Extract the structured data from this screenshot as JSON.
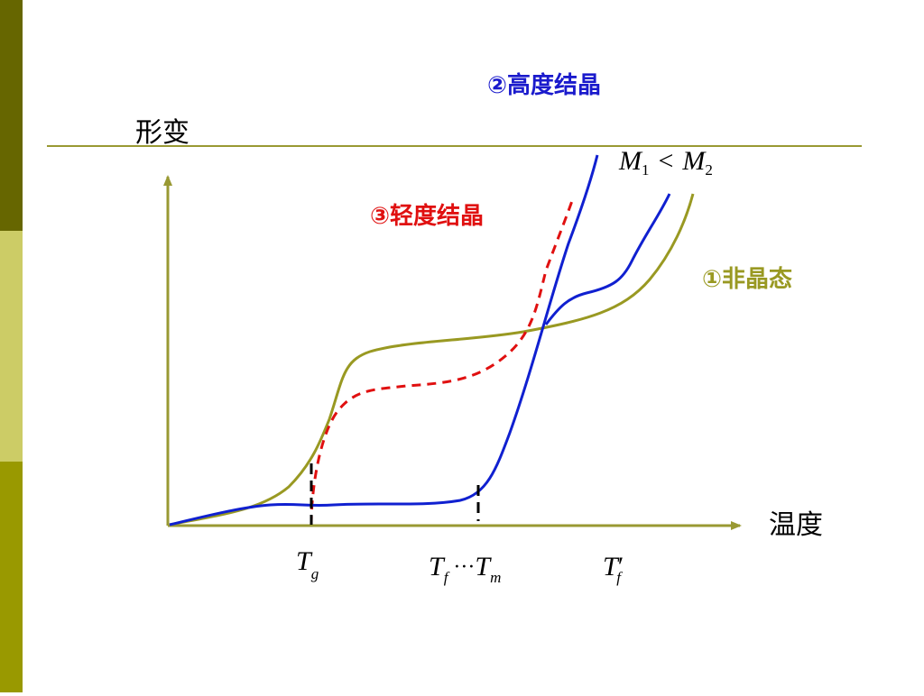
{
  "labels": {
    "high_crystal": "②高度结晶",
    "deformation": "形变",
    "light_crystal": "③轻度结晶",
    "amorphous": "①非晶态",
    "temperature": "温度"
  },
  "mass_relation": {
    "left": "M",
    "left_sub": "1",
    "op": "<",
    "right": "M",
    "right_sub": "2"
  },
  "x_markers": {
    "tg": {
      "base": "T",
      "sub": "g"
    },
    "tf_tm": {
      "left": "T",
      "left_sub": "f",
      "dots": "···",
      "right": "T",
      "right_sub": "m"
    },
    "tf_prime": {
      "base": "T",
      "prime": "′",
      "sub": "f"
    }
  }
}
